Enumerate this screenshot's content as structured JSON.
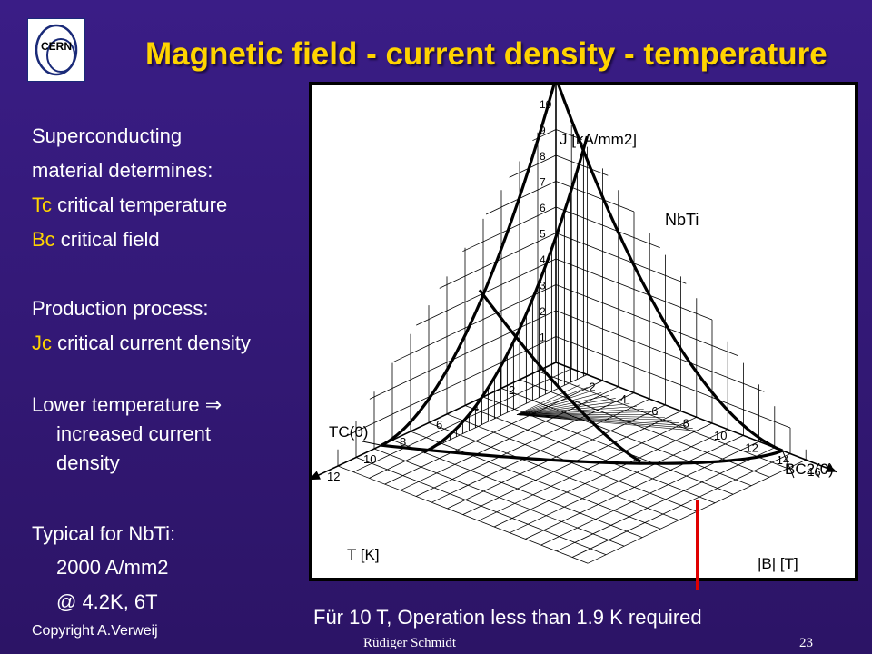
{
  "slide": {
    "title": "Magnetic field - current density - temperature",
    "logo_text": "CERN",
    "lines": {
      "l1": "Superconducting",
      "l2": "material determines:",
      "l3_hl": "Tc",
      "l3_rest": " critical temperature",
      "l4_hl": "Bc",
      "l4_rest": " critical field",
      "l5": "Production process:",
      "l6_hl": "Jc",
      "l6_rest": " critical current density",
      "l7": "Lower temperature ⇒",
      "l8": "increased current",
      "l9": "density",
      "l10": "Typical for NbTi:",
      "l11": "2000 A/mm2",
      "l12": "@ 4.2K, 6T"
    },
    "caption": "Für 10 T, Operation less than 1.9 K required",
    "copyright": "Copyright A.Verweij",
    "author": "Rüdiger Schmidt",
    "page_number": "23",
    "colors": {
      "title": "#ffd400",
      "highlight": "#ffd400",
      "marker": "#e00000",
      "background": "#2c1466"
    }
  },
  "diagram": {
    "material_label": "NbTi",
    "j_axis_label": "J [kA/mm2]",
    "t_axis_label": "T [K]",
    "b_axis_label": "|B| [T]",
    "tc_label": "TC(0)",
    "bc_label": "BC2(0)",
    "j_ticks": [
      "1",
      "2",
      "3",
      "4",
      "5",
      "6",
      "7",
      "8",
      "9",
      "10"
    ],
    "t_ticks": [
      "2",
      "4",
      "6",
      "8",
      "10",
      "12"
    ],
    "b_ticks": [
      "2",
      "4",
      "6",
      "8",
      "10",
      "12",
      "14",
      "16"
    ]
  }
}
